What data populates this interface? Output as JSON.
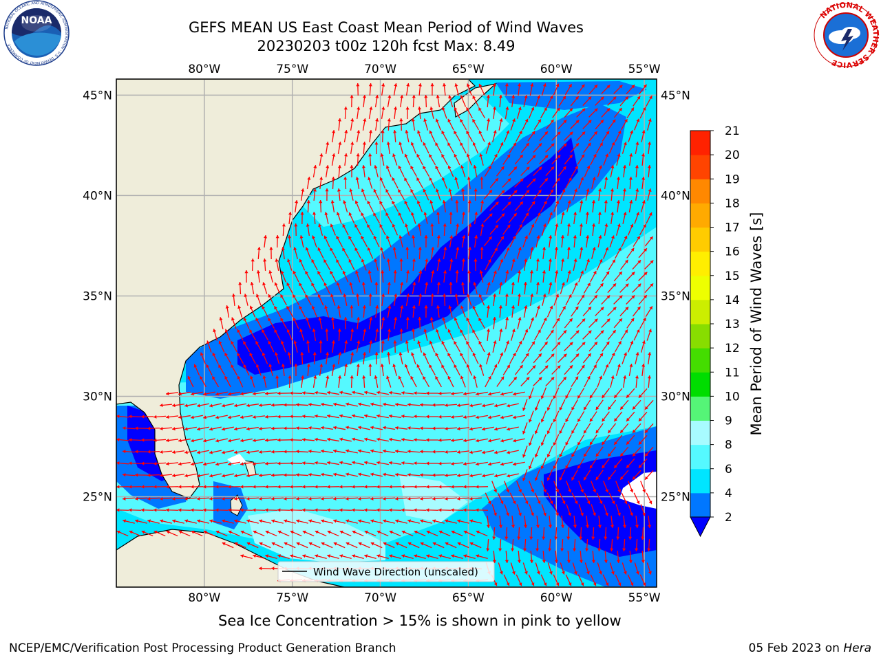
{
  "header": {
    "title_line1": "GEFS MEAN US East Coast Mean Period of Wind Waves",
    "title_line2": "20230203 t00z 120h fcst   Max: 8.49",
    "left_logo": {
      "text": "NOAA",
      "ring_text": "NATIONAL OCEANIC AND ATMOSPHERIC ADMINISTRATION · U.S. DEPARTMENT OF COMMERCE"
    },
    "right_logo": {
      "ring_text": "NATIONAL WEATHER SERVICE"
    }
  },
  "map": {
    "lon_ticks": [
      "80°W",
      "75°W",
      "70°W",
      "65°W",
      "60°W",
      "55°W"
    ],
    "lat_ticks": [
      "45°N",
      "40°N",
      "35°N",
      "30°N",
      "25°N"
    ],
    "lon_values": [
      -80,
      -75,
      -70,
      -65,
      -60,
      -55
    ],
    "lat_values": [
      45,
      40,
      35,
      30,
      25
    ],
    "extent": {
      "lon_min": -85,
      "lon_max": -54.3,
      "lat_min": 20.5,
      "lat_max": 45.8
    },
    "legend_label": "Wind Wave Direction (unscaled)",
    "colors": {
      "land": "#efedda",
      "ocean_2_4": "#0077ff",
      "ocean_4_6": "#00e5ff",
      "ocean_6_8": "#55f9ff",
      "ocean_8_9": "#a8fbff",
      "below_min": "#0000ff",
      "arrow": "#ff0000",
      "grid": "#b0b0b0"
    }
  },
  "colorbar": {
    "label": "Mean Period of Wind Waves [s]",
    "ticks": [
      "2",
      "4",
      "6",
      "8",
      "9",
      "10",
      "11",
      "12",
      "13",
      "14",
      "15",
      "16",
      "17",
      "18",
      "19",
      "20",
      "21"
    ],
    "colors": [
      "#0077ff",
      "#00e5ff",
      "#55f9ff",
      "#a8fbff",
      "#55f577",
      "#00dd00",
      "#44dd00",
      "#88dd00",
      "#ccee00",
      "#eeff00",
      "#ffee00",
      "#ffcc00",
      "#ffaa00",
      "#ff8800",
      "#ff4400",
      "#ff2200",
      "#ee0000"
    ],
    "extend_color": "#0000ff"
  },
  "subtitle": "Sea Ice Concentration > 15% is shown in pink to yellow",
  "footer": {
    "left": "NCEP/EMC/Verification Post Processing Product Generation Branch",
    "right_date": "05 Feb 2023 on ",
    "right_host": "Hera"
  }
}
